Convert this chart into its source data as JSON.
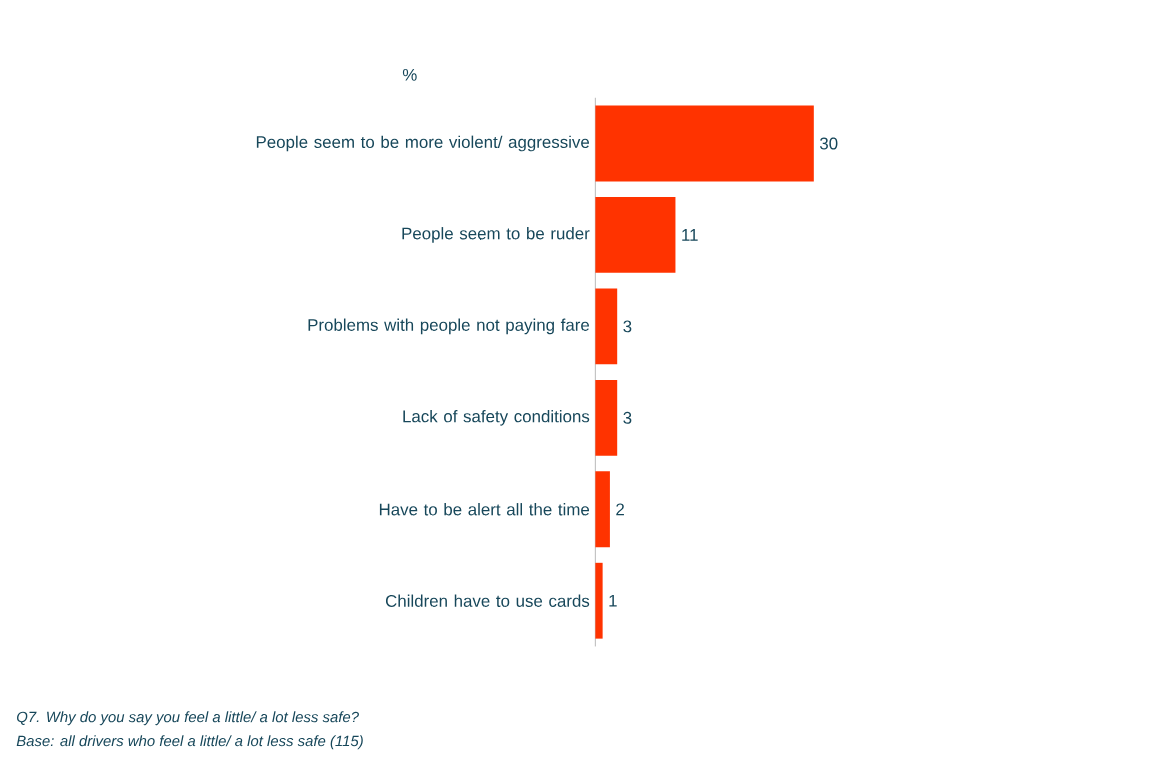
{
  "chart_data": {
    "type": "bar",
    "orientation": "horizontal",
    "categories": [
      "People seem to be more violent/ aggressive",
      "People seem to be ruder",
      "Problems with people not paying fare",
      "Lack of safety conditions",
      "Have to be alert all the time",
      "Children have to use cards"
    ],
    "values": [
      30,
      11,
      3,
      3,
      2,
      1
    ],
    "color": "#ff3300",
    "xlim": [
      0,
      30
    ],
    "data_labels": true,
    "annotations": [
      "%",
      "Q7. Why do you say you feel a little/ a lot less safe?",
      "Base: all drivers who feel a little/ a lot less safe (115)"
    ]
  }
}
